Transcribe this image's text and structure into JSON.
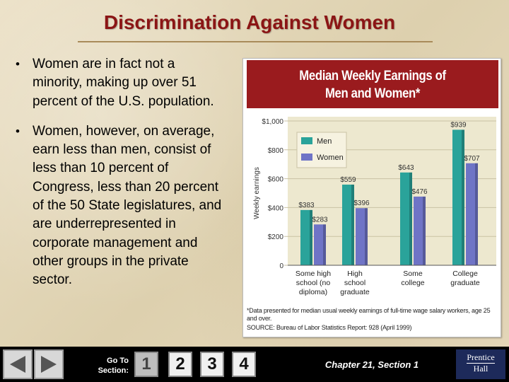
{
  "slide": {
    "title": "Discrimination Against Women",
    "bullets": [
      "Women are in fact not a minority, making up over 51 percent of the U.S. population.",
      "Women, however, on average, earn less than men, consist of less than 10 percent of Congress, less than 20 percent of the 50 State legislatures, and are underrepresented in corporate management and other groups in the private sector."
    ]
  },
  "chart_data": {
    "type": "bar",
    "title_line1": "Median Weekly Earnings of",
    "title_line2": "Men and Women*",
    "ylabel": "Weekly earnings",
    "ylim": [
      0,
      1000
    ],
    "yticks": [
      "0",
      "$200",
      "$400",
      "$600",
      "$800",
      "$1,000"
    ],
    "categories": [
      [
        "Some high",
        "school (no",
        "diploma)"
      ],
      [
        "High",
        "school",
        "graduate"
      ],
      [
        "Some",
        "college"
      ],
      [
        "College",
        "graduate"
      ]
    ],
    "series": [
      {
        "name": "Men",
        "values": [
          383,
          559,
          643,
          939
        ],
        "labels": [
          "$383",
          "$559",
          "$643",
          "$939"
        ],
        "color": "#2aa39a"
      },
      {
        "name": "Women",
        "values": [
          283,
          396,
          476,
          707
        ],
        "labels": [
          "$283",
          "$396",
          "$476",
          "$707"
        ],
        "color": "#6f74c6"
      }
    ],
    "note": "*Data presented for median usual weekly earnings of full-time wage salary workers, age 25 and over.",
    "source": "SOURCE: Bureau of Labor Statistics Report: 928 (April 1999)",
    "background_color": "#ede8cf",
    "legend_position": "top-left"
  },
  "footer": {
    "goto_line1": "Go To",
    "goto_line2": "Section:",
    "sections": [
      "1",
      "2",
      "3",
      "4"
    ],
    "current_section": "1",
    "chapter": "Chapter 21, Section 1",
    "logo_line1": "Prentice",
    "logo_line2": "Hall",
    "prev_icon": "left-arrow-icon",
    "next_icon": "right-arrow-icon"
  }
}
